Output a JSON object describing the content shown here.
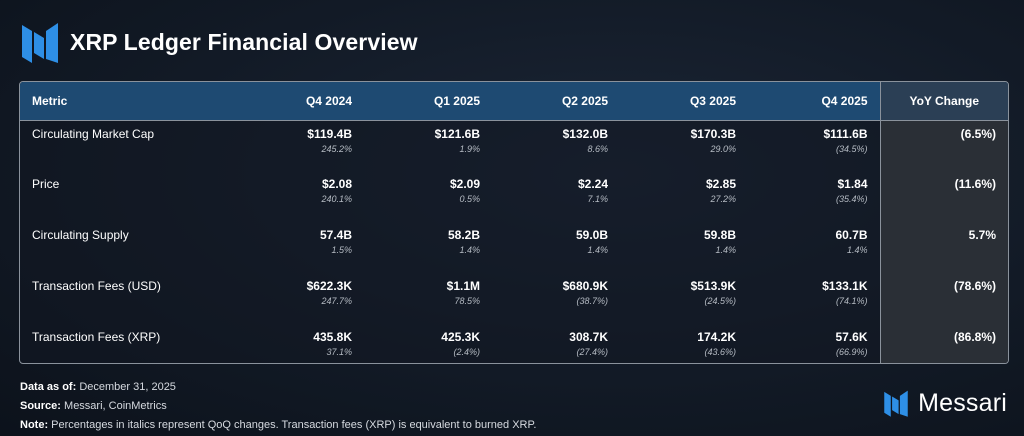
{
  "header": {
    "logo_icon": "messari-m-icon",
    "title": "XRP Ledger Financial Overview"
  },
  "colors": {
    "header_row": "#1e4a72",
    "yoy_header": "#2b3f55",
    "yoy_column": "#2a2f36",
    "logo_blue": "#2e8fe6"
  },
  "table": {
    "columns": [
      "Metric",
      "Q4 2024",
      "Q1 2025",
      "Q2 2025",
      "Q3 2025",
      "Q4 2025"
    ],
    "yoy_header": "YoY Change",
    "rows": [
      {
        "metric": "Circulating Market Cap",
        "cells": [
          {
            "value": "$119.4B",
            "change": "245.2%"
          },
          {
            "value": "$121.6B",
            "change": "1.9%"
          },
          {
            "value": "$132.0B",
            "change": "8.6%"
          },
          {
            "value": "$170.3B",
            "change": "29.0%"
          },
          {
            "value": "$111.6B",
            "change": "(34.5%)"
          }
        ],
        "yoy": "(6.5%)"
      },
      {
        "metric": "Price",
        "cells": [
          {
            "value": "$2.08",
            "change": "240.1%"
          },
          {
            "value": "$2.09",
            "change": "0.5%"
          },
          {
            "value": "$2.24",
            "change": "7.1%"
          },
          {
            "value": "$2.85",
            "change": "27.2%"
          },
          {
            "value": "$1.84",
            "change": "(35.4%)"
          }
        ],
        "yoy": "(11.6%)"
      },
      {
        "metric": "Circulating Supply",
        "cells": [
          {
            "value": "57.4B",
            "change": "1.5%"
          },
          {
            "value": "58.2B",
            "change": "1.4%"
          },
          {
            "value": "59.0B",
            "change": "1.4%"
          },
          {
            "value": "59.8B",
            "change": "1.4%"
          },
          {
            "value": "60.7B",
            "change": "1.4%"
          }
        ],
        "yoy": "5.7%"
      },
      {
        "metric": "Transaction Fees (USD)",
        "cells": [
          {
            "value": "$622.3K",
            "change": "247.7%"
          },
          {
            "value": "$1.1M",
            "change": "78.5%"
          },
          {
            "value": "$680.9K",
            "change": "(38.7%)"
          },
          {
            "value": "$513.9K",
            "change": "(24.5%)"
          },
          {
            "value": "$133.1K",
            "change": "(74.1%)"
          }
        ],
        "yoy": "(78.6%)"
      },
      {
        "metric": "Transaction Fees (XRP)",
        "cells": [
          {
            "value": "435.8K",
            "change": "37.1%"
          },
          {
            "value": "425.3K",
            "change": "(2.4%)"
          },
          {
            "value": "308.7K",
            "change": "(27.4%)"
          },
          {
            "value": "174.2K",
            "change": "(43.6%)"
          },
          {
            "value": "57.6K",
            "change": "(66.9%)"
          }
        ],
        "yoy": "(86.8%)"
      }
    ]
  },
  "footer": {
    "data_as_of_label": "Data as of:",
    "data_as_of": "December 31, 2025",
    "source_label": "Source:",
    "source": "Messari, CoinMetrics",
    "note_label": "Note:",
    "note": "Percentages in italics represent QoQ changes. Transaction fees (XRP) is equivalent to burned XRP."
  },
  "brand": {
    "logo_icon": "messari-m-icon",
    "name": "Messari"
  }
}
